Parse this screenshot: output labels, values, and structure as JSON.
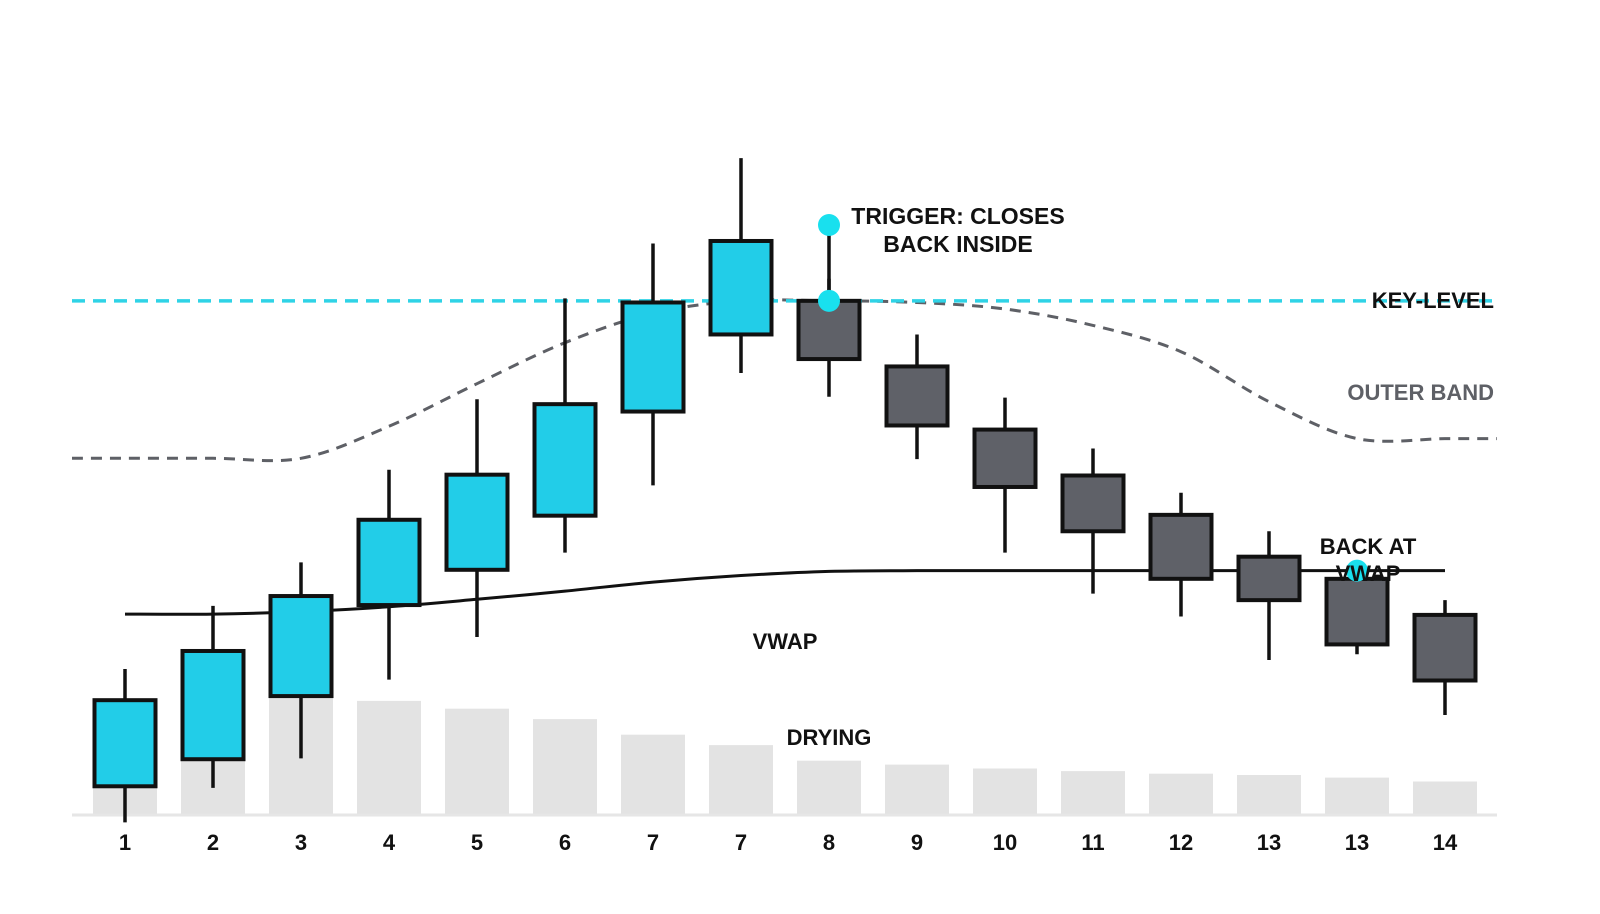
{
  "chart_data": {
    "type": "candlestick",
    "title": "",
    "xlabel": "",
    "ylabel": "",
    "ylim": [
      0,
      100
    ],
    "grid": false,
    "categories": [
      "1",
      "2",
      "3",
      "4",
      "5",
      "6",
      "7",
      "7",
      "8",
      "9",
      "10",
      "11",
      "12",
      "13",
      "13",
      "14"
    ],
    "candles": [
      {
        "open": 9.6,
        "close": 20.1,
        "high": 23.9,
        "low": 5.2,
        "dir": "up"
      },
      {
        "open": 12.9,
        "close": 26.1,
        "high": 31.6,
        "low": 9.4,
        "dir": "up"
      },
      {
        "open": 20.6,
        "close": 32.8,
        "high": 36.9,
        "low": 13.0,
        "dir": "up"
      },
      {
        "open": 31.7,
        "close": 42.1,
        "high": 48.2,
        "low": 22.6,
        "dir": "up"
      },
      {
        "open": 36.0,
        "close": 47.6,
        "high": 56.8,
        "low": 27.8,
        "dir": "up"
      },
      {
        "open": 42.6,
        "close": 56.2,
        "high": 69.1,
        "low": 38.1,
        "dir": "up"
      },
      {
        "open": 55.3,
        "close": 68.6,
        "high": 75.8,
        "low": 46.3,
        "dir": "up"
      },
      {
        "open": 64.7,
        "close": 76.1,
        "high": 86.2,
        "low": 60.0,
        "dir": "up"
      },
      {
        "open": 68.8,
        "close": 61.7,
        "high": 71.5,
        "low": 57.1,
        "dir": "down"
      },
      {
        "open": 60.8,
        "close": 53.6,
        "high": 64.7,
        "low": 49.5,
        "dir": "down"
      },
      {
        "open": 53.1,
        "close": 46.1,
        "high": 57.0,
        "low": 38.1,
        "dir": "down"
      },
      {
        "open": 47.5,
        "close": 40.7,
        "high": 50.8,
        "low": 33.1,
        "dir": "down"
      },
      {
        "open": 42.7,
        "close": 34.9,
        "high": 45.4,
        "low": 30.3,
        "dir": "down"
      },
      {
        "open": 37.6,
        "close": 32.3,
        "high": 40.7,
        "low": 25.0,
        "dir": "down"
      },
      {
        "open": 34.9,
        "close": 26.9,
        "high": 34.9,
        "low": 25.7,
        "dir": "down"
      },
      {
        "open": 30.5,
        "close": 22.5,
        "high": 32.3,
        "low": 18.3,
        "dir": "down"
      }
    ],
    "volume": [
      33,
      53,
      90,
      87,
      81,
      73,
      61,
      53,
      41,
      38,
      35,
      33,
      31,
      30,
      28,
      25
    ],
    "key_level": 68.8,
    "vwap": [
      30.6,
      30.6,
      30.9,
      31.5,
      32.4,
      33.4,
      34.5,
      35.3,
      35.8,
      35.9,
      35.9,
      35.9,
      35.9,
      35.9,
      35.9,
      35.9
    ],
    "outer_band": [
      49.6,
      49.6,
      49.6,
      53.5,
      58.7,
      63.7,
      67.3,
      68.8,
      68.8,
      68.6,
      67.8,
      65.8,
      62.6,
      56.5,
      52.0,
      52.0
    ],
    "annotations": {
      "trigger_line1": "TRIGGER: CLOSES",
      "trigger_line2": "BACK INSIDE",
      "key_level_label": "KEY-LEVEL",
      "outer_band_label": "OUTER BAND",
      "vwap_label": "VWAP",
      "drying_label": "DRYING",
      "back_at_line1": "BACK AT",
      "back_at_line2": "VWAP"
    },
    "colors": {
      "up": "#22cde8",
      "down": "#5f6168",
      "outline": "#111111",
      "key_level": "#2fd3e6",
      "outer_band": "#5e6066",
      "vwap": "#111111",
      "volume": "#e3e3e3",
      "marker": "#19e0ee",
      "axis": "#e6e6e6"
    }
  }
}
